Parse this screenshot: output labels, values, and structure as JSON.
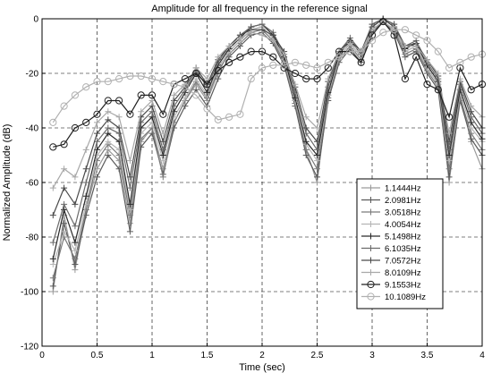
{
  "chart_data": {
    "type": "line",
    "title": "Amplitude for all frequency in the reference signal",
    "xlabel": "Time (sec)",
    "ylabel": "Normalized Amplitude (dB)",
    "xlim": [
      0,
      4
    ],
    "ylim": [
      -120,
      0
    ],
    "xticks": [
      0,
      0.5,
      1,
      1.5,
      2,
      2.5,
      3,
      3.5,
      4
    ],
    "yticks": [
      -120,
      -100,
      -80,
      -60,
      -40,
      -20,
      0
    ],
    "xtick_labels": [
      "0",
      "0.5",
      "1",
      "1.5",
      "2",
      "2.5",
      "3",
      "3.5",
      "4"
    ],
    "ytick_labels": [
      "-120",
      "-100",
      "-80",
      "-60",
      "-40",
      "-20",
      "0"
    ],
    "grid": true,
    "grid_style": "dashed",
    "legend_position": "right",
    "x": [
      0.1,
      0.2,
      0.3,
      0.4,
      0.5,
      0.6,
      0.7,
      0.8,
      0.9,
      1.0,
      1.1,
      1.2,
      1.3,
      1.4,
      1.5,
      1.6,
      1.7,
      1.8,
      1.9,
      2.0,
      2.1,
      2.2,
      2.3,
      2.4,
      2.5,
      2.6,
      2.7,
      2.8,
      2.9,
      3.0,
      3.1,
      3.2,
      3.3,
      3.4,
      3.5,
      3.6,
      3.7,
      3.8,
      3.9,
      4.0
    ],
    "series": [
      {
        "name": "1.1444Hz",
        "color": "#9a9a9a",
        "marker": "plus",
        "values": [
          -100,
          -72,
          -92,
          -70,
          -55,
          -48,
          -52,
          -75,
          -45,
          -40,
          -55,
          -38,
          -30,
          -24,
          -30,
          -20,
          -12,
          -8,
          -4,
          -3,
          -7,
          -15,
          -30,
          -48,
          -60,
          -28,
          -14,
          -9,
          -14,
          -3,
          0,
          -3,
          -12,
          -10,
          -18,
          -24,
          -60,
          -28,
          -45,
          -55
        ]
      },
      {
        "name": "2.0981Hz",
        "color": "#5a5a5a",
        "marker": "plus",
        "values": [
          -98,
          -75,
          -90,
          -72,
          -58,
          -50,
          -55,
          -78,
          -47,
          -42,
          -57,
          -40,
          -32,
          -26,
          -32,
          -22,
          -14,
          -10,
          -6,
          -5,
          -9,
          -17,
          -32,
          -50,
          -58,
          -30,
          -16,
          -11,
          -16,
          -5,
          -1,
          -5,
          -14,
          -12,
          -20,
          -26,
          -58,
          -30,
          -44,
          -50
        ]
      },
      {
        "name": "3.0518Hz",
        "color": "#7a7a7a",
        "marker": "plus",
        "values": [
          -95,
          -80,
          -88,
          -70,
          -52,
          -46,
          -50,
          -72,
          -44,
          -40,
          -58,
          -38,
          -30,
          -23,
          -29,
          -19,
          -13,
          -9,
          -5,
          -4,
          -8,
          -16,
          -31,
          -48,
          -55,
          -29,
          -15,
          -10,
          -15,
          -4,
          -1,
          -4,
          -13,
          -11,
          -19,
          -25,
          -55,
          -29,
          -42,
          -48
        ]
      },
      {
        "name": "4.0054Hz",
        "color": "#b5b5b5",
        "marker": "plus",
        "values": [
          -90,
          -78,
          -85,
          -68,
          -50,
          -45,
          -48,
          -70,
          -42,
          -38,
          -52,
          -36,
          -29,
          -22,
          -28,
          -18,
          -12,
          -8,
          -4,
          -3,
          -7,
          -15,
          -30,
          -46,
          -52,
          -28,
          -14,
          -9,
          -14,
          -3,
          0,
          -3,
          -12,
          -10,
          -18,
          -24,
          -52,
          -27,
          -40,
          -45
        ]
      },
      {
        "name": "5.1498Hz",
        "color": "#2a2a2a",
        "marker": "plus",
        "values": [
          -88,
          -70,
          -82,
          -65,
          -48,
          -42,
          -45,
          -68,
          -40,
          -36,
          -50,
          -34,
          -27,
          -20,
          -27,
          -17,
          -11,
          -7,
          -3,
          -2,
          -6,
          -14,
          -29,
          -45,
          -50,
          -27,
          -13,
          -8,
          -13,
          -2,
          0,
          -2,
          -11,
          -9,
          -17,
          -23,
          -50,
          -26,
          -38,
          -44
        ]
      },
      {
        "name": "6.1035Hz",
        "color": "#6a6a6a",
        "marker": "plus",
        "values": [
          -82,
          -68,
          -76,
          -60,
          -45,
          -40,
          -42,
          -62,
          -38,
          -34,
          -48,
          -32,
          -26,
          -19,
          -25,
          -16,
          -10,
          -6,
          -3,
          -2,
          -5,
          -13,
          -27,
          -42,
          -48,
          -25,
          -12,
          -7,
          -12,
          -2,
          0,
          -2,
          -10,
          -8,
          -16,
          -22,
          -48,
          -24,
          -36,
          -42
        ]
      },
      {
        "name": "7.0572Hz",
        "color": "#4a4a4a",
        "marker": "plus",
        "values": [
          -72,
          -62,
          -68,
          -55,
          -42,
          -37,
          -40,
          -58,
          -36,
          -32,
          -45,
          -30,
          -25,
          -18,
          -24,
          -15,
          -10,
          -6,
          -4,
          -4,
          -6,
          -12,
          -25,
          -40,
          -45,
          -23,
          -12,
          -8,
          -12,
          -3,
          0,
          -3,
          -10,
          -9,
          -15,
          -21,
          -45,
          -23,
          -34,
          -40
        ]
      },
      {
        "name": "8.0109Hz",
        "color": "#a8a8a8",
        "marker": "plus",
        "values": [
          -62,
          -55,
          -58,
          -48,
          -38,
          -34,
          -36,
          -52,
          -34,
          -30,
          -42,
          -28,
          -24,
          -18,
          -22,
          -14,
          -10,
          -7,
          -5,
          -6,
          -8,
          -13,
          -24,
          -36,
          -40,
          -22,
          -12,
          -9,
          -12,
          -4,
          -1,
          -4,
          -10,
          -10,
          -15,
          -20,
          -42,
          -22,
          -32,
          -36
        ]
      },
      {
        "name": "9.1553Hz",
        "color": "#202020",
        "marker": "circle",
        "values": [
          -47,
          -46,
          -40,
          -38,
          -35,
          -30,
          -30,
          -35,
          -28,
          -28,
          -35,
          -24,
          -22,
          -20,
          -24,
          -19,
          -16,
          -14,
          -12,
          -12,
          -14,
          -18,
          -20,
          -22,
          -22,
          -18,
          -12,
          -12,
          -16,
          -6,
          -1,
          -6,
          -22,
          -14,
          -24,
          -26,
          -36,
          -18,
          -26,
          -24
        ]
      },
      {
        "name": "10.1089Hz",
        "color": "#b0b0b0",
        "marker": "circle",
        "values": [
          -38,
          -32,
          -28,
          -25,
          -23,
          -23,
          -22,
          -21,
          -21,
          -22,
          -23,
          -24,
          -25,
          -28,
          -33,
          -37,
          -36,
          -35,
          -22,
          -18,
          -17,
          -17,
          -16,
          -17,
          -18,
          -16,
          -14,
          -12,
          -12,
          -8,
          -5,
          -4,
          -4,
          -6,
          -8,
          -12,
          -18,
          -16,
          -14,
          -13
        ]
      }
    ]
  }
}
